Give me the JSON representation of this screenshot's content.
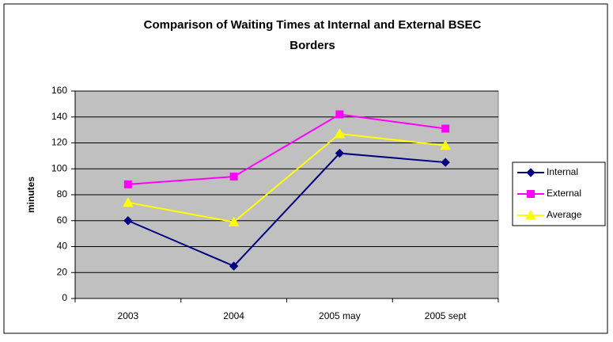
{
  "chart_data": {
    "type": "line",
    "title": [
      "Comparison of Waiting Times at Internal and External BSEC",
      "Borders"
    ],
    "y_label": "minutes",
    "categories": [
      "2003",
      "2004",
      "2005 may",
      "2005 sept"
    ],
    "series": [
      {
        "name": "Internal",
        "color": "#000080",
        "marker": "diamond",
        "values": [
          60,
          25,
          112,
          105
        ]
      },
      {
        "name": "External",
        "color": "#ff00ff",
        "marker": "square",
        "values": [
          88,
          94,
          142,
          131
        ]
      },
      {
        "name": "Average",
        "color": "#ffff00",
        "marker": "triangle",
        "values": [
          74,
          59,
          127,
          118
        ]
      }
    ],
    "ylim": [
      0,
      160
    ],
    "yticks": [
      0,
      20,
      40,
      60,
      80,
      100,
      120,
      140,
      160
    ],
    "grid": true,
    "legend": "right"
  }
}
